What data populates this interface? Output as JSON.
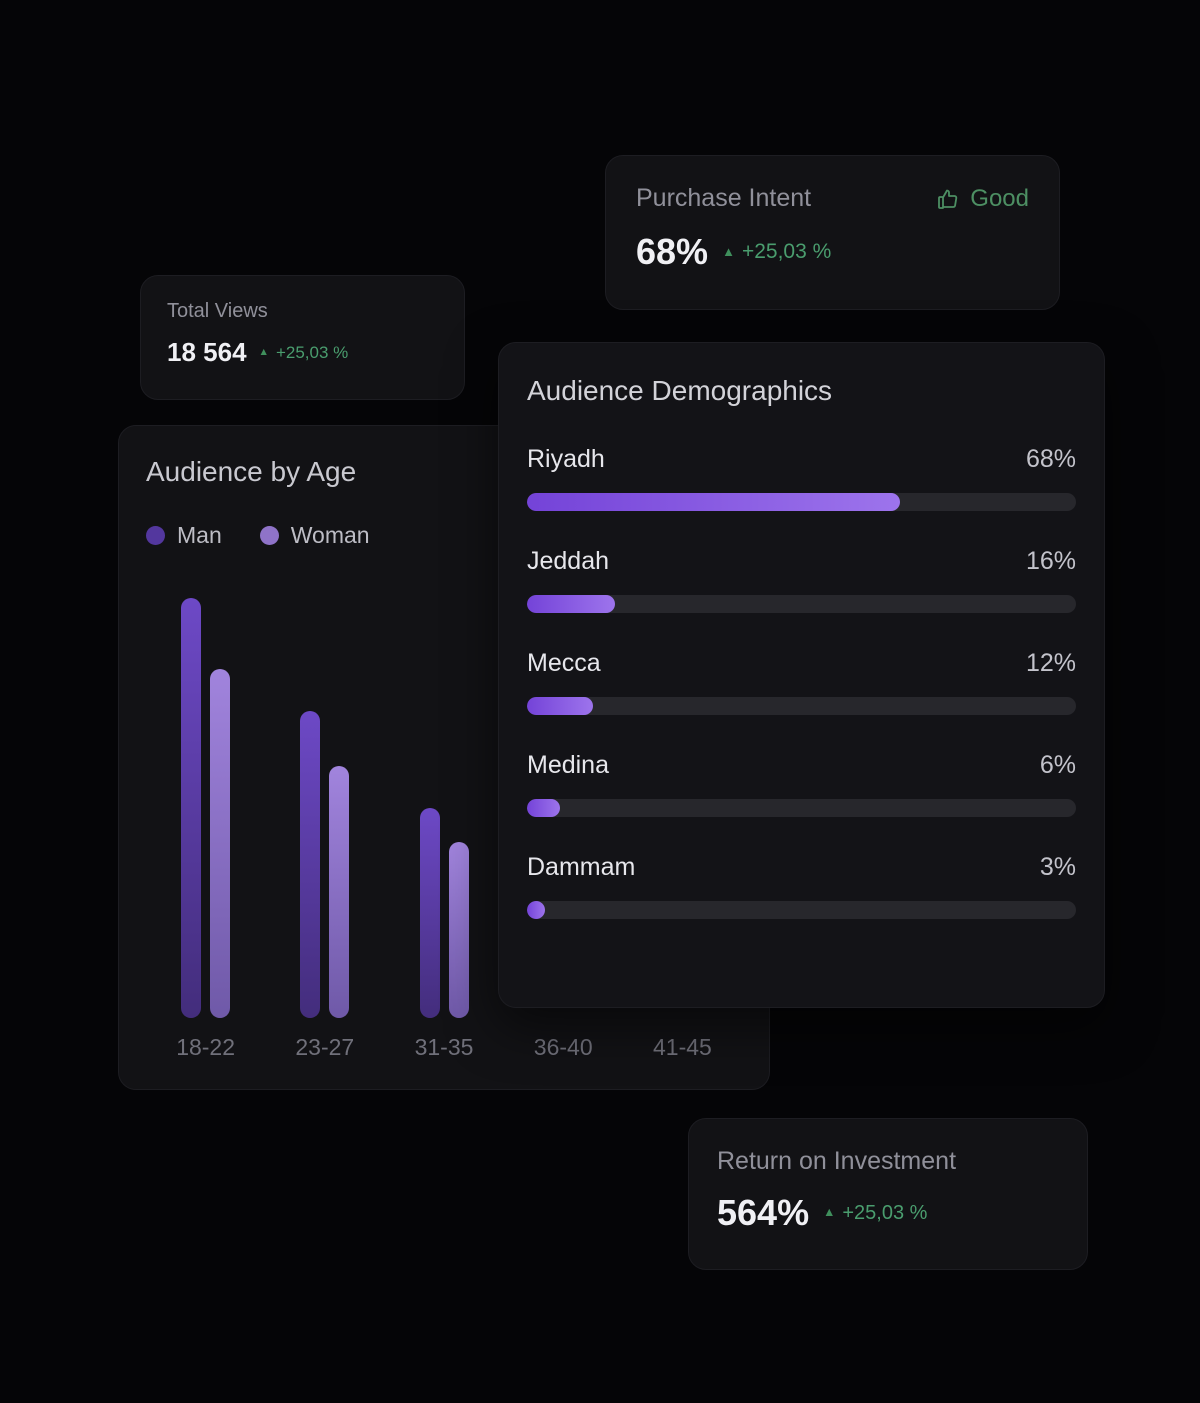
{
  "colors": {
    "background": "#050507",
    "card": "#121215",
    "accent_purple": "#7c52d6",
    "man_bar": "#6d49c6",
    "woman_bar": "#a184dd",
    "positive_green": "#4a9d6e",
    "muted_label": "#90909a"
  },
  "cards": {
    "purchase_intent": {
      "title": "Purchase Intent",
      "badge": "Good",
      "value": "68%",
      "delta": "+25,03 %"
    },
    "total_views": {
      "title": "Total Views",
      "value": "18 564",
      "delta": "+25,03 %"
    },
    "roi": {
      "title": "Return on Investment",
      "value": "564%",
      "delta": "+25,03 %"
    }
  },
  "chart_data": [
    {
      "type": "bar",
      "title": "Audience by Age",
      "categories": [
        "18-22",
        "23-27",
        "31-35",
        "36-40",
        "41-45"
      ],
      "series": [
        {
          "name": "Man",
          "values": [
            100,
            73,
            50,
            null,
            null
          ]
        },
        {
          "name": "Woman",
          "values": [
            83,
            60,
            42,
            null,
            null
          ]
        }
      ],
      "ylim": [
        0,
        100
      ],
      "grid": false,
      "legend_position": "top",
      "note": "values are relative heights (no y-axis shown); bars for 36-40 and 41-45 are hidden behind the overlapping Audience Demographics card"
    },
    {
      "type": "bar",
      "title": "Audience Demographics",
      "categories": [
        "Riyadh",
        "Jeddah",
        "Mecca",
        "Medina",
        "Dammam"
      ],
      "values": [
        68,
        16,
        12,
        6,
        3
      ],
      "value_labels": [
        "68%",
        "16%",
        "12%",
        "6%",
        "3%"
      ],
      "xlim": [
        0,
        100
      ],
      "orientation": "horizontal",
      "grid": false
    }
  ]
}
